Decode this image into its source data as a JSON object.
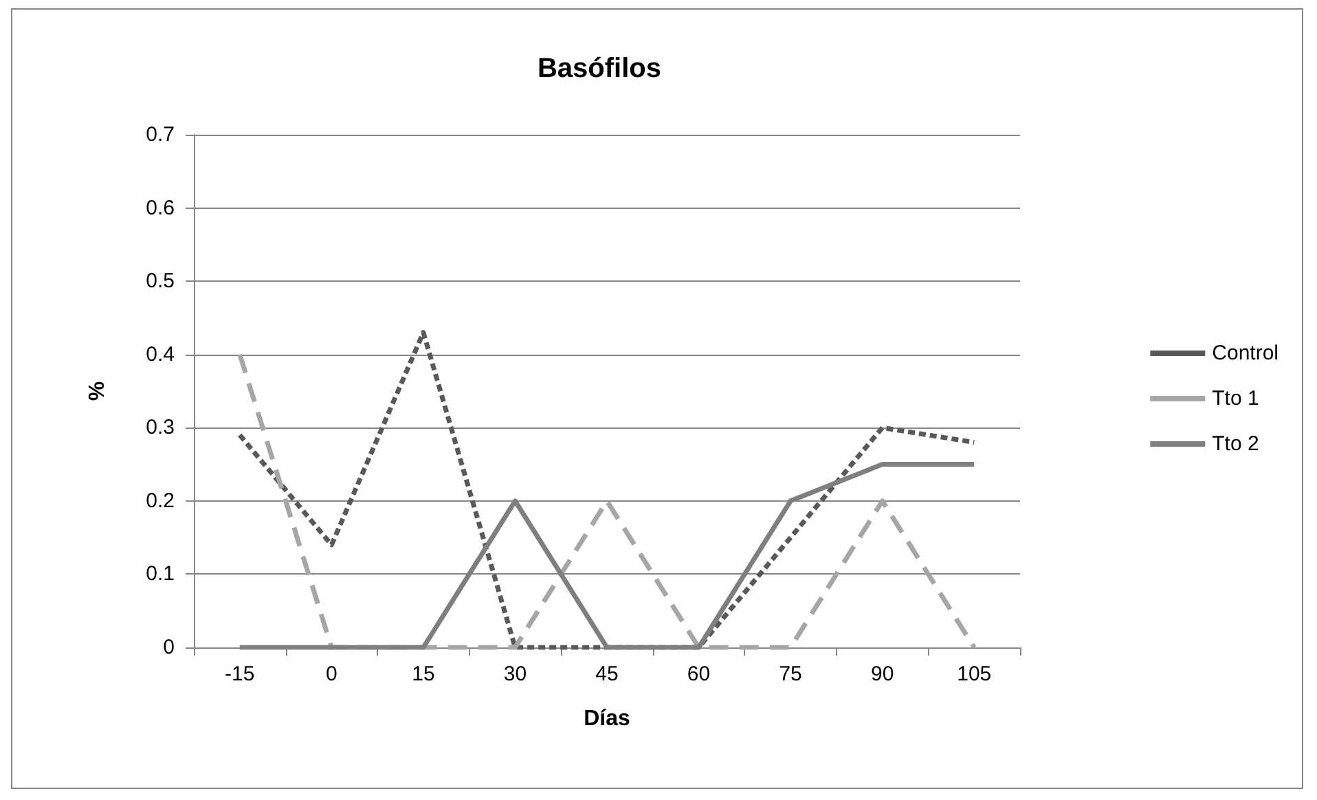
{
  "chart_data": {
    "type": "line",
    "title": "Basófilos",
    "xlabel": "Días",
    "ylabel": "%",
    "categories": [
      "-15",
      "0",
      "15",
      "30",
      "45",
      "60",
      "75",
      "90",
      "105"
    ],
    "series": [
      {
        "name": "Control",
        "color": "#595959",
        "line_style": "dotted",
        "values": [
          0.29,
          0.14,
          0.43,
          0,
          0,
          0,
          0.15,
          0.3,
          0.28
        ]
      },
      {
        "name": "Tto 1",
        "color": "#a6a6a6",
        "line_style": "dashed",
        "values": [
          0.4,
          0,
          0,
          0,
          0.2,
          0,
          0,
          0.2,
          0
        ]
      },
      {
        "name": "Tto 2",
        "color": "#7f7f7f",
        "line_style": "solid",
        "values": [
          0,
          0,
          0,
          0.2,
          0,
          0,
          0.2,
          0.25,
          0.25
        ]
      }
    ],
    "ylim": [
      0,
      0.7
    ],
    "yticks": [
      0,
      0.1,
      0.2,
      0.3,
      0.4,
      0.5,
      0.6,
      0.7
    ],
    "grid": "y",
    "legend": "right",
    "marker": "none"
  }
}
